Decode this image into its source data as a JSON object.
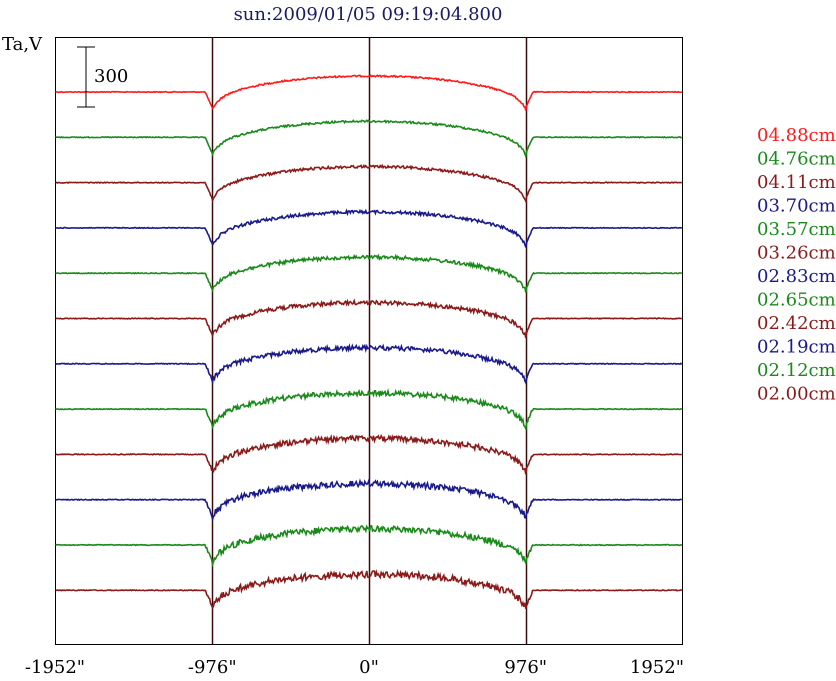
{
  "chart_data": {
    "type": "line",
    "title": "sun:2009/01/05 09:19:04.800",
    "ylabel": "Ta,V",
    "xlabel": "",
    "scale_bar_label": "300",
    "x_tick_labels": [
      "-1952\"",
      "-976\"",
      "0\"",
      "976\"",
      "1952\""
    ],
    "x_ticks": [
      -1952,
      -976,
      0,
      976,
      1952
    ],
    "xlim": [
      -1952,
      1952
    ],
    "limb_lines": [
      -976,
      0,
      976
    ],
    "grid": false,
    "legend_placement": "right",
    "colors": {
      "red": "#ff1a1a",
      "green": "#1a8a1a",
      "maroon": "#8b1a1a",
      "blue": "#1a1a8b",
      "frame": "#000000",
      "limb_line": "#3a0a0a"
    },
    "series": [
      {
        "name": "04.88cm",
        "color": "#ff1a1a"
      },
      {
        "name": "04.76cm",
        "color": "#1a8a1a"
      },
      {
        "name": "04.11cm",
        "color": "#8b1a1a"
      },
      {
        "name": "03.70cm",
        "color": "#1a1a8b"
      },
      {
        "name": "03.57cm",
        "color": "#1a8a1a"
      },
      {
        "name": "03.26cm",
        "color": "#8b1a1a"
      },
      {
        "name": "02.83cm",
        "color": "#1a1a8b"
      },
      {
        "name": "02.65cm",
        "color": "#1a8a1a"
      },
      {
        "name": "02.42cm",
        "color": "#8b1a1a"
      },
      {
        "name": "02.19cm",
        "color": "#1a1a8b"
      },
      {
        "name": "02.12cm",
        "color": "#1a8a1a"
      },
      {
        "name": "02.00cm",
        "color": "#8b1a1a"
      }
    ]
  }
}
